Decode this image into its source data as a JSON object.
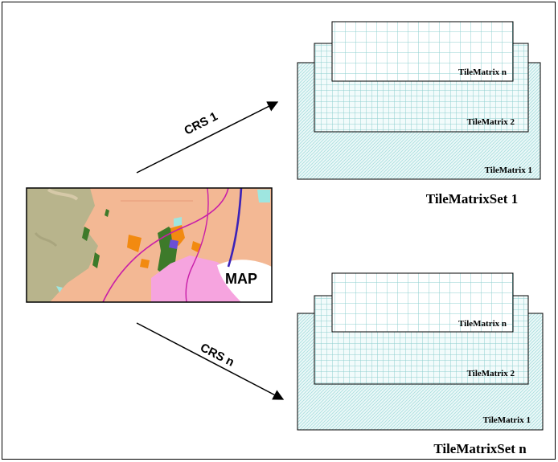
{
  "map": {
    "label": "MAP",
    "colors": {
      "base": "#f3b894",
      "olive": "#b8b48c",
      "green": "#3d7a2a",
      "orange": "#f28a10",
      "pink": "#f6a4df",
      "road": "#c81ea8",
      "river": "#3b22b8",
      "cyan": "#9ee6e0"
    }
  },
  "arrows": [
    {
      "label": "CRS 1"
    },
    {
      "label": "CRS n"
    }
  ],
  "tile_sets": [
    {
      "title": "TileMatrixSet 1",
      "matrices": [
        "TileMatrix n",
        "TileMatrix 2",
        "TileMatrix 1"
      ]
    },
    {
      "title": "TileMatrixSet n",
      "matrices": [
        "TileMatrix n",
        "TileMatrix 2",
        "TileMatrix 1"
      ]
    }
  ],
  "colors": {
    "grid_line": "#8ecfcf",
    "fine_texture": "#a9dede",
    "layer_fill": "#e8f6f6",
    "border": "#000000"
  }
}
